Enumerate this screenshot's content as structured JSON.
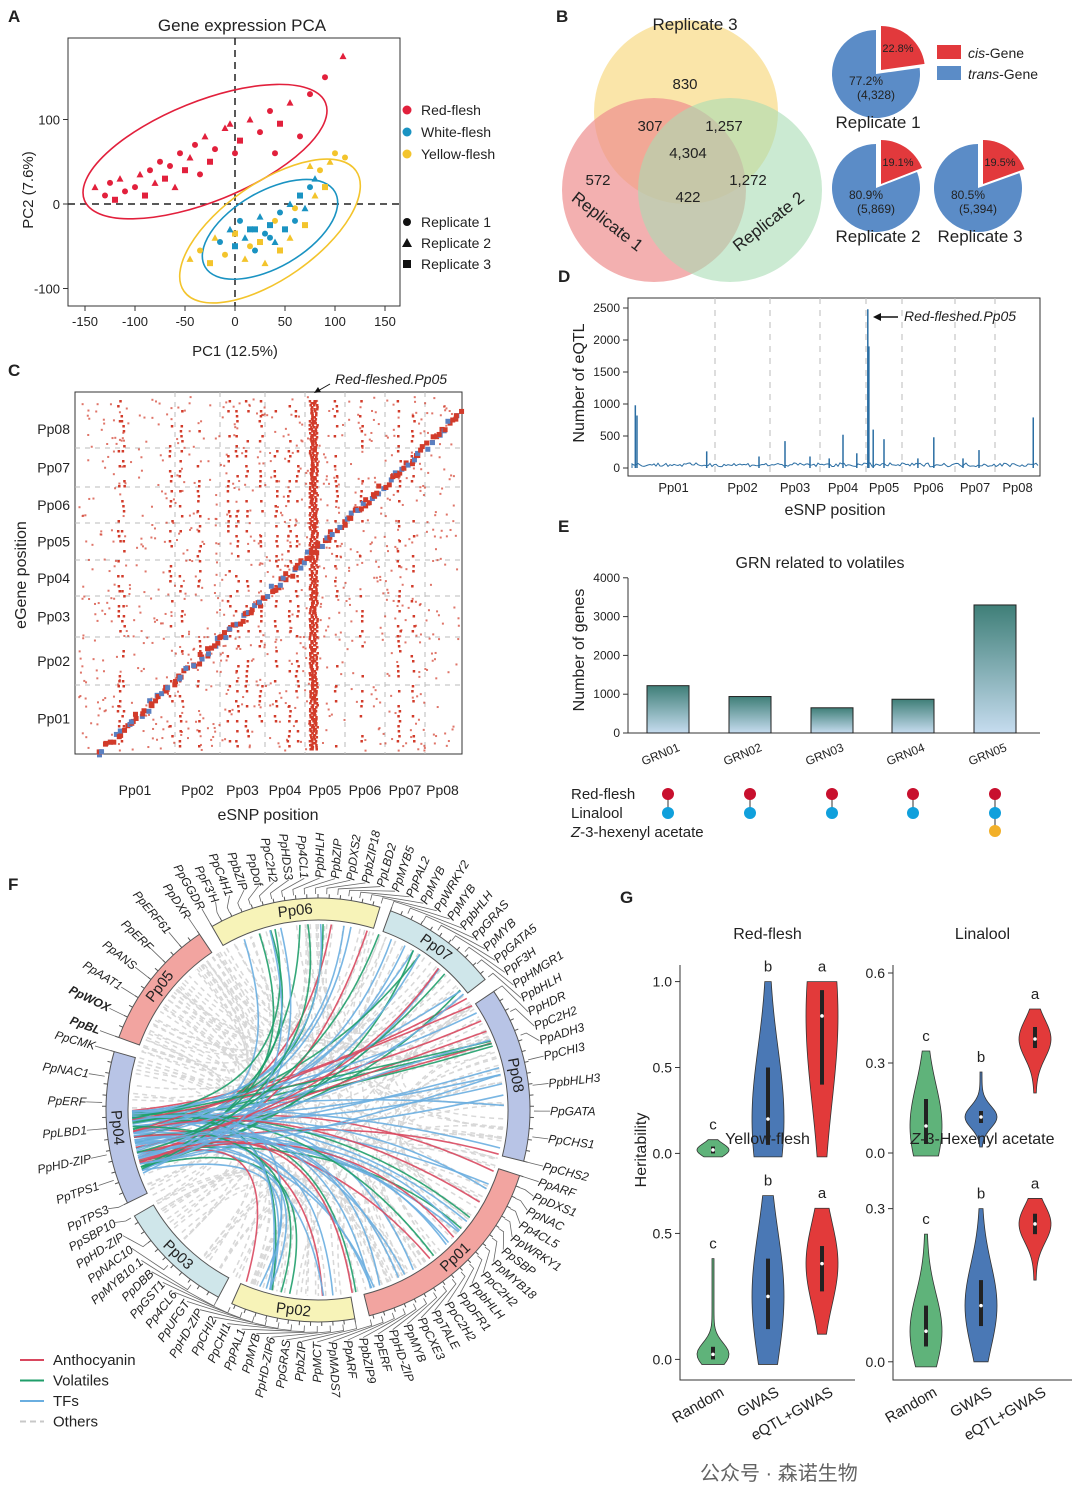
{
  "panels": {
    "A": "A",
    "B": "B",
    "C": "C",
    "D": "D",
    "E": "E",
    "F": "F",
    "G": "G"
  },
  "watermark": "公众号 · 森诺生物",
  "chart_data": [
    {
      "panel": "A",
      "type": "scatter",
      "title": "Gene expression PCA",
      "xlabel": "PC1 (12.5%)",
      "ylabel": "PC2 (7.6%)",
      "xlim": [
        -160,
        160
      ],
      "ylim": [
        -115,
        185
      ],
      "xticks": [
        -150,
        -100,
        -50,
        0,
        50,
        100,
        150
      ],
      "yticks": [
        -100,
        0,
        100
      ],
      "legend_groups": [
        "Red-flesh",
        "White-flesh",
        "Yellow-flesh"
      ],
      "legend_replicates": [
        "Replicate 1",
        "Replicate 2",
        "Replicate 3"
      ],
      "colors": {
        "Red-flesh": "#e2203c",
        "White-flesh": "#1a93c2",
        "Yellow-flesh": "#f3c42c"
      },
      "series": [
        {
          "name": "Red-flesh",
          "points": [
            [
              -140,
              20,
              2
            ],
            [
              -130,
              10,
              1
            ],
            [
              -125,
              25,
              1
            ],
            [
              -120,
              5,
              3
            ],
            [
              -115,
              30,
              2
            ],
            [
              -110,
              15,
              1
            ],
            [
              -100,
              20,
              1
            ],
            [
              -95,
              35,
              2
            ],
            [
              -90,
              10,
              3
            ],
            [
              -85,
              40,
              1
            ],
            [
              -80,
              25,
              2
            ],
            [
              -75,
              50,
              1
            ],
            [
              -70,
              30,
              3
            ],
            [
              -65,
              45,
              1
            ],
            [
              -60,
              20,
              2
            ],
            [
              -55,
              60,
              1
            ],
            [
              -50,
              40,
              3
            ],
            [
              -45,
              55,
              2
            ],
            [
              -40,
              70,
              1
            ],
            [
              -35,
              35,
              1
            ],
            [
              -30,
              80,
              2
            ],
            [
              -25,
              50,
              3
            ],
            [
              -20,
              65,
              1
            ],
            [
              -10,
              90,
              2
            ],
            [
              0,
              60,
              1
            ],
            [
              5,
              75,
              3
            ],
            [
              15,
              100,
              2
            ],
            [
              25,
              85,
              1
            ],
            [
              35,
              110,
              1
            ],
            [
              45,
              95,
              3
            ],
            [
              55,
              120,
              2
            ],
            [
              65,
              80,
              1
            ],
            [
              75,
              130,
              1
            ],
            [
              90,
              150,
              1
            ],
            [
              108,
              175,
              2
            ],
            [
              40,
              60,
              1
            ],
            [
              -5,
              95,
              2
            ]
          ]
        },
        {
          "name": "White-flesh",
          "points": [
            [
              -15,
              -45,
              1
            ],
            [
              -5,
              -30,
              2
            ],
            [
              0,
              -50,
              3
            ],
            [
              5,
              -20,
              1
            ],
            [
              10,
              -40,
              2
            ],
            [
              15,
              -30,
              3
            ],
            [
              20,
              -55,
              1
            ],
            [
              25,
              -15,
              2
            ],
            [
              30,
              -35,
              1
            ],
            [
              35,
              -25,
              3
            ],
            [
              40,
              -45,
              2
            ],
            [
              45,
              -10,
              1
            ],
            [
              50,
              -30,
              3
            ],
            [
              55,
              0,
              2
            ],
            [
              60,
              -20,
              1
            ],
            [
              65,
              10,
              3
            ],
            [
              70,
              -5,
              2
            ],
            [
              75,
              20,
              1
            ],
            [
              20,
              -30,
              3
            ],
            [
              35,
              -40,
              1
            ],
            [
              80,
              30,
              2
            ]
          ]
        },
        {
          "name": "Yellow-flesh",
          "points": [
            [
              -45,
              -65,
              2
            ],
            [
              -35,
              -55,
              1
            ],
            [
              -25,
              -70,
              3
            ],
            [
              -20,
              -40,
              2
            ],
            [
              -10,
              -60,
              1
            ],
            [
              0,
              -35,
              3
            ],
            [
              10,
              -65,
              2
            ],
            [
              15,
              -50,
              1
            ],
            [
              25,
              -45,
              3
            ],
            [
              30,
              -70,
              2
            ],
            [
              40,
              -20,
              1
            ],
            [
              45,
              -55,
              3
            ],
            [
              55,
              -40,
              2
            ],
            [
              60,
              -5,
              1
            ],
            [
              70,
              -25,
              3
            ],
            [
              80,
              10,
              2
            ],
            [
              85,
              40,
              1
            ],
            [
              95,
              50,
              2
            ],
            [
              100,
              60,
              1
            ],
            [
              90,
              20,
              3
            ],
            [
              75,
              45,
              2
            ],
            [
              110,
              55,
              1
            ]
          ]
        }
      ]
    },
    {
      "panel": "B",
      "type": "venn",
      "sets": [
        "Replicate 1",
        "Replicate 2",
        "Replicate 3"
      ],
      "regions": {
        "only3": "830",
        "only1": "572",
        "only2": "1,272",
        "r1_r3": "307",
        "r2_r3": "1,257",
        "r1_r2": "422",
        "all": "4,304"
      },
      "colors": {
        "Replicate 1": "#ee8f8f",
        "Replicate 2": "#a9dcb4",
        "Replicate 3": "#f8dc8c"
      }
    },
    {
      "panel": "B",
      "type": "pie",
      "legend": [
        {
          "label": "cis",
          "suffix": "-Gene",
          "color": "#e2393c"
        },
        {
          "label": "trans",
          "suffix": "-Gene",
          "color": "#5b8cc7"
        }
      ],
      "pies": [
        {
          "name": "Replicate 1",
          "cis": "22.8%",
          "trans": "77.2%",
          "trans_count": "(4,328)",
          "cis_value": 22.8
        },
        {
          "name": "Replicate 2",
          "cis": "19.1%",
          "trans": "80.9%",
          "trans_count": "(5,869)",
          "cis_value": 19.1
        },
        {
          "name": "Replicate 3",
          "cis": "19.5%",
          "trans": "80.5%",
          "trans_count": "(5,394)",
          "cis_value": 19.5
        }
      ]
    },
    {
      "panel": "C",
      "type": "heatmap",
      "xlabel": "eSNP position",
      "ylabel": "eGene position",
      "chromosomes": [
        "Pp01",
        "Pp02",
        "Pp03",
        "Pp04",
        "Pp05",
        "Pp06",
        "Pp07",
        "Pp08"
      ],
      "annotation": "Red-fleshed.Pp05",
      "hotspot_chromosome": "Pp05",
      "dot_color": "#d23b2a",
      "diagonal_color": "#5a7fc0"
    },
    {
      "panel": "D",
      "type": "line",
      "xlabel": "eSNP position",
      "ylabel": "Number of eQTL",
      "ylim": [
        0,
        2600
      ],
      "yticks": [
        0,
        500,
        1000,
        1500,
        2000,
        2500
      ],
      "chromosomes": [
        "Pp01",
        "Pp02",
        "Pp03",
        "Pp04",
        "Pp05",
        "Pp06",
        "Pp07",
        "Pp08"
      ],
      "annotation": "Red-fleshed.Pp05",
      "peaks": [
        {
          "chr": "Pp01",
          "pos": 0.04,
          "value": 980
        },
        {
          "chr": "Pp01",
          "pos": 0.06,
          "value": 820
        },
        {
          "chr": "Pp01",
          "pos": 0.9,
          "value": 260
        },
        {
          "chr": "Pp02",
          "pos": 0.8,
          "value": 180
        },
        {
          "chr": "Pp03",
          "pos": 0.3,
          "value": 420
        },
        {
          "chr": "Pp03",
          "pos": 0.8,
          "value": 180
        },
        {
          "chr": "Pp04",
          "pos": 0.2,
          "value": 150
        },
        {
          "chr": "Pp04",
          "pos": 0.5,
          "value": 520
        },
        {
          "chr": "Pp04",
          "pos": 0.8,
          "value": 230
        },
        {
          "chr": "Pp05",
          "pos": 0.05,
          "value": 2480
        },
        {
          "chr": "Pp05",
          "pos": 0.08,
          "value": 1900
        },
        {
          "chr": "Pp05",
          "pos": 0.2,
          "value": 600
        },
        {
          "chr": "Pp05",
          "pos": 0.5,
          "value": 450
        },
        {
          "chr": "Pp06",
          "pos": 0.6,
          "value": 480
        },
        {
          "chr": "Pp06",
          "pos": 0.3,
          "value": 150
        },
        {
          "chr": "Pp07",
          "pos": 0.2,
          "value": 150
        },
        {
          "chr": "Pp07",
          "pos": 0.6,
          "value": 280
        },
        {
          "chr": "Pp08",
          "pos": 0.85,
          "value": 790
        }
      ]
    },
    {
      "panel": "E",
      "type": "bar",
      "title": "GRN related to volatiles",
      "ylabel": "Number of genes",
      "ylim": [
        0,
        4000
      ],
      "yticks": [
        0,
        1000,
        2000,
        3000,
        4000
      ],
      "categories": [
        "GRN01",
        "GRN02",
        "GRN03",
        "GRN04",
        "GRN05"
      ],
      "values": [
        1220,
        940,
        650,
        870,
        3300
      ],
      "traits": [
        {
          "label": "Red-flesh",
          "color": "#c8102e"
        },
        {
          "label": "Linalool",
          "color": "#10a0dc"
        },
        {
          "label": "Z",
          "label_rest": "-3-hexenyl acetate",
          "color": "#f2b029"
        }
      ],
      "trait_membership": [
        [
          1,
          1,
          0
        ],
        [
          1,
          1,
          0
        ],
        [
          1,
          1,
          0
        ],
        [
          1,
          1,
          0
        ],
        [
          1,
          1,
          1
        ]
      ]
    },
    {
      "panel": "F",
      "type": "circos",
      "legend": [
        {
          "label": "Anthocyanin",
          "color": "#d9485f"
        },
        {
          "label": "Volatiles",
          "color": "#1f9e6a"
        },
        {
          "label": "TFs",
          "color": "#6aaee0"
        },
        {
          "label": "Others",
          "color": "#c8c8c8"
        }
      ],
      "chromosomes": [
        {
          "name": "Pp06",
          "color": "#f7f3b8",
          "genes": [
            "PpGGDR",
            "PpF3'H",
            "PpC4H1",
            "PpbZIP",
            "PpDof",
            "PpC2H2",
            "PpHDS3",
            "Pp4CL1",
            "PpbHLH",
            "PpbZIP",
            "PpDXS2",
            "PpbZIP18",
            "PpLBD2",
            "PpMYB5",
            "PpPAL2",
            "PpMYB",
            "PpWRKY2"
          ]
        },
        {
          "name": "Pp07",
          "color": "#cfe6ea",
          "genes": [
            "PpMYB",
            "PpbHLH",
            "PpGRAS",
            "PpMYB",
            "PpGATA5",
            "PpF3H",
            "PpHMGR1",
            "PpbHLH"
          ]
        },
        {
          "name": "Pp08",
          "color": "#b8c4e6",
          "genes": [
            "PpHDR",
            "PpC2H2",
            "PpADH3",
            "PpCHI3",
            "PpbHLH3",
            "PpGATA",
            "PpCHS1",
            "PpCHS2"
          ]
        },
        {
          "name": "Pp01",
          "color": "#f2a4a0",
          "genes": [
            "PpARF",
            "PpDXS1",
            "PpNAC",
            "Pp4CL5",
            "PpWRKY1",
            "PpSBP",
            "PpMYB18",
            "PpC2H2",
            "PpbHLH",
            "PpDFR1",
            "PpC2H2",
            "PpTALE",
            "PpCXE3",
            "PpMYB",
            "PpHD-ZIP",
            "PpERF",
            "PpbZIP9",
            "PpARF",
            "PpMADS7",
            "PpMCT"
          ]
        },
        {
          "name": "Pp02",
          "color": "#f7f3b8",
          "genes": [
            "PpbZIP",
            "PpGRAS",
            "PpHD-ZIP6",
            "PpMYB",
            "PpPAL1",
            "PpCHI1",
            "PpCHI2",
            "PpHD-ZIP",
            "PpUFGT",
            "Pp4CL6",
            "PpGST1"
          ]
        },
        {
          "name": "Pp03",
          "color": "#cfe6ea",
          "genes": [
            "PpDBB",
            "PpMYB10.1",
            "PpNAC10",
            "PpHD-ZIP",
            "PpSBP10"
          ]
        },
        {
          "name": "Pp04",
          "color": "#b8c4e6",
          "genes": [
            "PpTPS3",
            "PpTPS1",
            "PpHD-ZIP",
            "PpLBD1",
            "PpERF",
            "PpNAC1",
            "PpCMK"
          ]
        },
        {
          "name": "Pp05",
          "color": "#f2a4a0",
          "genes": [
            "PpBL",
            "PpWOX",
            "PpAAT1",
            "PpANS",
            "PpERF",
            "PpERF61",
            "PpDXR"
          ]
        }
      ],
      "bold_genes": [
        "PpWOX",
        "PpBL"
      ]
    },
    {
      "panel": "G",
      "type": "violin",
      "ylabel": "Heritability",
      "categories": [
        "Random",
        "GWAS",
        "eQTL+GWAS"
      ],
      "colors": [
        "#5fb37a",
        "#4a78b5",
        "#e23a3a"
      ],
      "plots": [
        {
          "title": "Red-flesh",
          "ylim": [
            -0.05,
            1.05
          ],
          "yticks": [
            "0.0",
            "0.5",
            "1.0"
          ],
          "yvals": [
            0,
            0.5,
            1
          ],
          "letters": [
            "c",
            "b",
            "a"
          ],
          "stats": [
            {
              "median": 0.02,
              "q1": 0.0,
              "q3": 0.04,
              "min": -0.02,
              "max": 0.08
            },
            {
              "median": 0.2,
              "q1": 0.05,
              "q3": 0.5,
              "min": -0.02,
              "max": 1.0
            },
            {
              "median": 0.8,
              "q1": 0.4,
              "q3": 0.95,
              "min": -0.02,
              "max": 1.0
            }
          ]
        },
        {
          "title": "Linalool",
          "ylim": [
            -0.03,
            0.6
          ],
          "yticks": [
            "0.0",
            "0.3",
            "0.6"
          ],
          "yvals": [
            0,
            0.3,
            0.6
          ],
          "letters": [
            "c",
            "b",
            "a"
          ],
          "stats": [
            {
              "median": 0.09,
              "q1": 0.03,
              "q3": 0.18,
              "min": -0.01,
              "max": 0.34
            },
            {
              "median": 0.12,
              "q1": 0.1,
              "q3": 0.14,
              "min": 0.02,
              "max": 0.27
            },
            {
              "median": 0.38,
              "q1": 0.35,
              "q3": 0.42,
              "min": 0.2,
              "max": 0.48
            }
          ]
        },
        {
          "title": "Yellow-flesh",
          "ylim": [
            -0.05,
            0.72
          ],
          "yticks": [
            "0.0",
            "0.5"
          ],
          "yvals": [
            0,
            0.5
          ],
          "letters": [
            "c",
            "b",
            "a"
          ],
          "stats": [
            {
              "median": 0.02,
              "q1": 0.0,
              "q3": 0.05,
              "min": -0.02,
              "max": 0.4
            },
            {
              "median": 0.25,
              "q1": 0.12,
              "q3": 0.4,
              "min": -0.02,
              "max": 0.65
            },
            {
              "median": 0.38,
              "q1": 0.27,
              "q3": 0.45,
              "min": 0.1,
              "max": 0.6
            }
          ]
        },
        {
          "title": "Z",
          "title_rest": "-3-Hexenyl acetate",
          "ylim": [
            -0.02,
            0.36
          ],
          "yticks": [
            "0.0",
            "0.3"
          ],
          "yvals": [
            0,
            0.3
          ],
          "letters": [
            "c",
            "b",
            "a"
          ],
          "stats": [
            {
              "median": 0.06,
              "q1": 0.03,
              "q3": 0.11,
              "min": -0.01,
              "max": 0.25
            },
            {
              "median": 0.11,
              "q1": 0.07,
              "q3": 0.16,
              "min": 0.0,
              "max": 0.3
            },
            {
              "median": 0.27,
              "q1": 0.25,
              "q3": 0.29,
              "min": 0.16,
              "max": 0.32
            }
          ]
        }
      ]
    }
  ]
}
